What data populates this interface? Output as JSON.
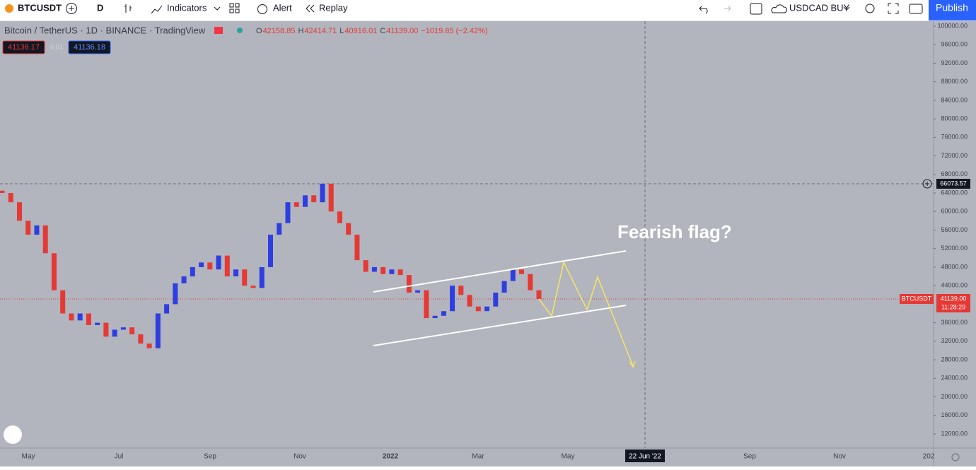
{
  "toolbar": {
    "symbol": "BTCUSDT",
    "interval": "D",
    "indicators": "Indicators",
    "alert": "Alert",
    "replay": "Replay",
    "account": "USDCAD BUY",
    "publish": "Publish"
  },
  "legend": {
    "title": "Bitcoin / TetherUS · 1D · BINANCE · TradingView",
    "ohlc": [
      {
        "label": "O",
        "value": "42158.85"
      },
      {
        "label": "H",
        "value": "42414.71"
      },
      {
        "label": "L",
        "value": "40916.01"
      },
      {
        "label": "C",
        "value": "41139.00"
      }
    ],
    "change": "−1019.85 (−2.42%)",
    "sell": "41136.17",
    "spread": "0.01",
    "buy": "41136.18"
  },
  "chart_data": {
    "type": "candlestick",
    "first_open": 64500,
    "closes": [
      64000,
      62000,
      58000,
      55000,
      57000,
      51000,
      43000,
      38000,
      36500,
      38000,
      35500,
      36000,
      33000,
      34500,
      35000,
      33500,
      31500,
      30500,
      38000,
      40000,
      44500,
      46000,
      48000,
      49000,
      47500,
      50500,
      46000,
      47500,
      44000,
      43500,
      48000,
      55000,
      57500,
      62000,
      61000,
      63500,
      62000,
      66000,
      60000,
      57500,
      55000,
      49500,
      47000,
      48000,
      46500,
      47500,
      46300,
      42500,
      43000,
      37000,
      37500,
      38500,
      44000,
      42000,
      39500,
      38500,
      39500,
      42500,
      45000,
      47500,
      46500,
      43000,
      41139
    ],
    "up_color": "#2f3ee0",
    "down_color": "#e53935",
    "ylim": [
      12000,
      100000
    ],
    "yticks": [
      {
        "value": 100000,
        "label": "100000.00"
      },
      {
        "value": 96000,
        "label": "96000.00"
      },
      {
        "value": 92000,
        "label": "92000.00"
      },
      {
        "value": 88000,
        "label": "88000.00"
      },
      {
        "value": 84000,
        "label": "84000.00"
      },
      {
        "value": 80000,
        "label": "80000.00"
      },
      {
        "value": 76000,
        "label": "76000.00"
      },
      {
        "value": 72000,
        "label": "72000.00"
      },
      {
        "value": 68000,
        "label": "68000.00"
      },
      {
        "value": 64000,
        "label": "64000.00"
      },
      {
        "value": 60000,
        "label": "60000.00"
      },
      {
        "value": 56000,
        "label": "56000.00"
      },
      {
        "value": 52000,
        "label": "52000.00"
      },
      {
        "value": 48000,
        "label": "48000.00"
      },
      {
        "value": 44000,
        "label": "44000.00"
      },
      {
        "value": 36000,
        "label": "36000.00"
      },
      {
        "value": 32000,
        "label": "32000.00"
      },
      {
        "value": 28000,
        "label": "28000.00"
      },
      {
        "value": 24000,
        "label": "24000.00"
      },
      {
        "value": 20000,
        "label": "20000.00"
      },
      {
        "value": 16000,
        "label": "16000.00"
      },
      {
        "value": 12000,
        "label": "12000.00"
      }
    ],
    "x": [
      "May",
      "Jul",
      "Sep",
      "Nov",
      "2022",
      "Mar",
      "May",
      "Sep",
      "Nov",
      "202"
    ],
    "crosshair_price": "66073.57",
    "crosshair_date": "22 Jun '22",
    "symbol_tag": "BTCUSDT",
    "last_price": "41139.00",
    "countdown": "11:28:29",
    "annotation": "Fearish flag?"
  }
}
